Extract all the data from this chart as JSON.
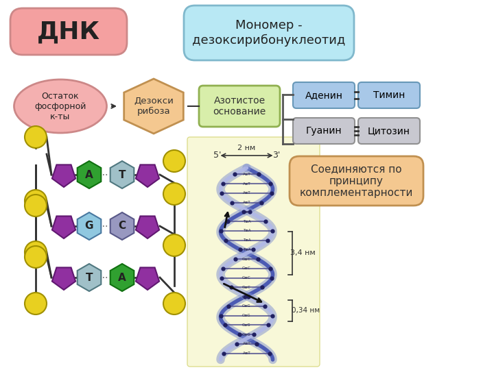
{
  "title_dnk": "ДНК",
  "title_monomer": "Мономер -\nдезоксирибонуклеотид",
  "box1_text": "Остаток\nфосфорной\nк-ты",
  "box2_text": "Дезокси\nрибоза",
  "box3_text": "Азотистое\nоснование",
  "box4a_text": "Аденин",
  "box4b_text": "Тимин",
  "box5a_text": "Гуанин",
  "box5b_text": "Цитозин",
  "complement_text": "Соединяются по\nпринципу\nкомплементарности",
  "dnk_color": "#f4a0a0",
  "dnk_edge": "#cc8888",
  "monomer_color": "#b8e8f4",
  "monomer_edge": "#80b8cc",
  "box1_color": "#f4b0b0",
  "box1_edge": "#cc8888",
  "box2_color": "#f4c890",
  "box2_edge": "#c09050",
  "box3_color": "#d8eeaa",
  "box3_edge": "#90b050",
  "adenin_color": "#a8c8e8",
  "timin_color": "#a8c8e8",
  "adenin_edge": "#6898b8",
  "timin_edge": "#6898b8",
  "guanin_color": "#c8c8d0",
  "citozin_color": "#c8c8d0",
  "guanin_edge": "#909090",
  "citozin_edge": "#909090",
  "complement_color": "#f4c890",
  "complement_edge": "#c09050",
  "bg_color": "#ffffff",
  "dna_bg_color": "#f8f8d8",
  "pentagon_color": "#9030a0",
  "pentagon_edge": "#601870",
  "circle_color": "#e8d020",
  "circle_edge": "#a09000",
  "base_A_color": "#30a030",
  "base_A_edge": "#107010",
  "base_T_color": "#a0c8c0",
  "base_T_edge": "#508878",
  "base_G_color": "#a0c8e0",
  "base_G_edge": "#507898",
  "base_C_color": "#a8a8c8",
  "base_C_edge": "#686898",
  "strand_color1": "#4050b0",
  "strand_color2": "#8090d0",
  "rung_color": "#505090",
  "dot_color": "#202060"
}
